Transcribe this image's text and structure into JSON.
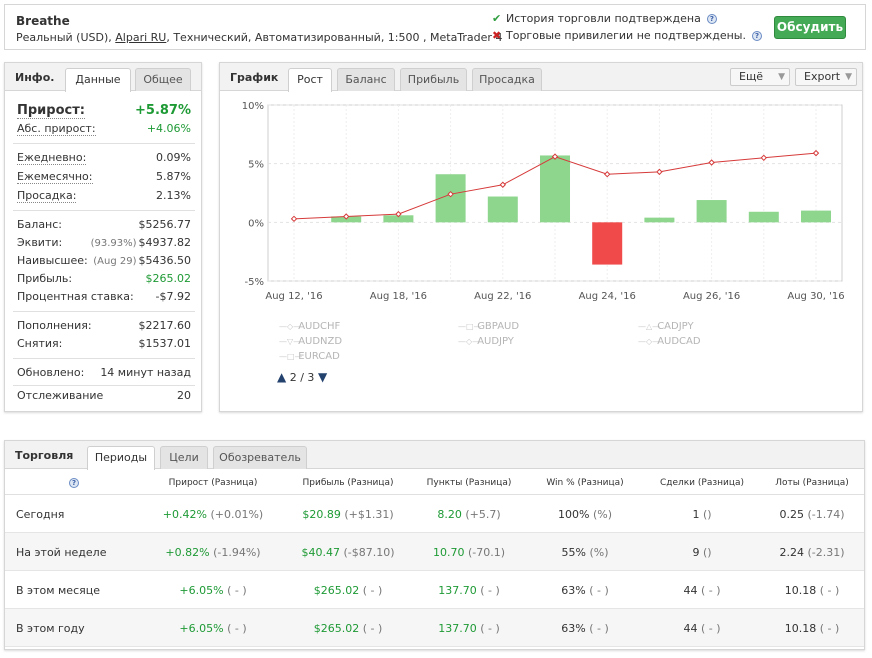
{
  "header": {
    "name": "Breathe",
    "meta_pre": "Реальный (USD), ",
    "meta_broker": "Alpari RU",
    "meta_post": ", Технический, Автоматизированный, 1:500 , MetaTrader 4",
    "status_ok": "История торговли подтверждена",
    "status_bad": "Торговые привилегии не подтверждены.",
    "discuss": "Обсудить",
    "colors": {
      "ok": "#2e9e3e",
      "bad": "#cc2222",
      "accent": "#44aa55"
    }
  },
  "info": {
    "title": "Инфо.",
    "tabs": [
      "Данные",
      "Общее"
    ],
    "gain": {
      "label": "Прирост:",
      "value": "+5.87%"
    },
    "abs_gain": {
      "label": "Абс. прирост:",
      "value": "+4.06%"
    },
    "daily": {
      "label": "Ежедневно:",
      "value": "0.09%"
    },
    "monthly": {
      "label": "Ежемесячно:",
      "value": "5.87%"
    },
    "drawdown": {
      "label": "Просадка:",
      "value": "2.13%"
    },
    "balance": {
      "label": "Баланс:",
      "value": "$5256.77"
    },
    "equity": {
      "label": "Эквити:",
      "sub": "(93.93%)",
      "value": "$4937.82"
    },
    "highest": {
      "label": "Наивысшее:",
      "sub": "(Aug 29)",
      "value": "$5436.50"
    },
    "profit": {
      "label": "Прибыль:",
      "value": "$265.02"
    },
    "interest": {
      "label": "Процентная ставка:",
      "value": "-$7.92"
    },
    "deposits": {
      "label": "Пополнения:",
      "value": "$2217.60"
    },
    "withdrawals": {
      "label": "Снятия:",
      "value": "$1537.01"
    },
    "updated": {
      "label": "Обновлено:",
      "value": "14 минут назад"
    },
    "tracking": {
      "label": "Отслеживание",
      "value": "20"
    }
  },
  "chart_panel": {
    "title": "График",
    "tabs": [
      "Рост",
      "Баланс",
      "Прибыль",
      "Просадка"
    ],
    "more": "Ещё",
    "export": "Export",
    "legend": [
      {
        "name": "AUDCHF",
        "marker": "diamond"
      },
      {
        "name": "GBPAUD",
        "marker": "square"
      },
      {
        "name": "CADJPY",
        "marker": "triangle"
      },
      {
        "name": "AUDNZD",
        "marker": "triangle-down"
      },
      {
        "name": "AUDJPY",
        "marker": "diamond"
      },
      {
        "name": "AUDCAD",
        "marker": "diamond"
      },
      {
        "name": "EURCAD",
        "marker": "square"
      }
    ],
    "pager": "2 / 3"
  },
  "chart_data": {
    "type": "bar",
    "y_ticks": [
      "10%",
      "5%",
      "0%",
      "-5%"
    ],
    "ylim": [
      -5,
      10
    ],
    "x_tick_labels": [
      "Aug 12, '16",
      "Aug 18, '16",
      "Aug 22, '16",
      "Aug 24, '16",
      "Aug 26, '16",
      "Aug 30, '16"
    ],
    "bars": [
      0,
      0.5,
      0.6,
      4.1,
      2.2,
      5.7,
      -3.6,
      0.4,
      1.9,
      0.9,
      1.0
    ],
    "line": [
      0.3,
      0.5,
      0.7,
      2.4,
      3.2,
      5.6,
      4.1,
      4.3,
      5.1,
      5.5,
      5.9
    ],
    "grid": true,
    "colors": {
      "positive": "#8ed68e",
      "negative": "#f04a4a",
      "line": "#d63a3a"
    }
  },
  "trading": {
    "title": "Торговля",
    "tabs": [
      "Периоды",
      "Цели",
      "Обозреватель"
    ],
    "columns": [
      "Прирост (Разница)",
      "Прибыль (Разница)",
      "Пункты (Разница)",
      "Win % (Разница)",
      "Сделки (Разница)",
      "Лоты (Разница)"
    ],
    "rows": [
      {
        "period": "Сегодня",
        "gain": "+0.42%",
        "gain_d": "(+0.01%)",
        "profit": "$20.89",
        "profit_d": "(+$1.31)",
        "pips": "8.20",
        "pips_d": "(+5.7)",
        "win": "100%",
        "win_d": "(%)",
        "trades": "1",
        "trades_d": "()",
        "lots": "0.25",
        "lots_d": "(-1.74)"
      },
      {
        "period": "На этой неделе",
        "gain": "+0.82%",
        "gain_d": "(-1.94%)",
        "profit": "$40.47",
        "profit_d": "(-$87.10)",
        "pips": "10.70",
        "pips_d": "(-70.1)",
        "win": "55%",
        "win_d": "(%)",
        "trades": "9",
        "trades_d": "()",
        "lots": "2.24",
        "lots_d": "(-2.31)"
      },
      {
        "period": "В этом месяце",
        "gain": "+6.05%",
        "gain_d": "( - )",
        "profit": "$265.02",
        "profit_d": "( - )",
        "pips": "137.70",
        "pips_d": "( - )",
        "win": "63%",
        "win_d": "( - )",
        "trades": "44",
        "trades_d": "( - )",
        "lots": "10.18",
        "lots_d": "( - )"
      },
      {
        "period": "В этом году",
        "gain": "+6.05%",
        "gain_d": "( - )",
        "profit": "$265.02",
        "profit_d": "( - )",
        "pips": "137.70",
        "pips_d": "( - )",
        "win": "63%",
        "win_d": "( - )",
        "trades": "44",
        "trades_d": "( - )",
        "lots": "10.18",
        "lots_d": "( - )"
      }
    ]
  }
}
